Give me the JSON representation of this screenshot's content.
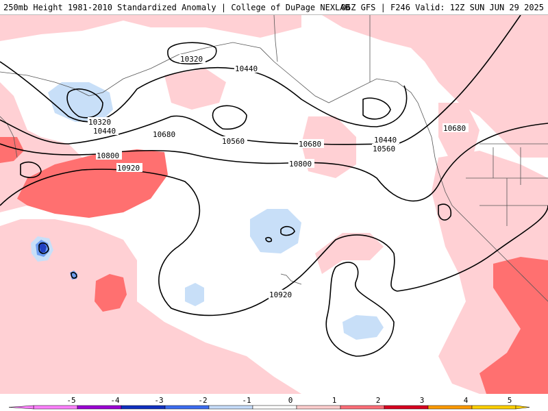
{
  "header": {
    "left_title": "250mb Height 1981-2010 Standardized Anomaly | College of DuPage NEXLAB",
    "right_title": "06Z GFS | F246 Valid: 12Z SUN JUN 29 2025"
  },
  "contour_labels": [
    "10320",
    "10440",
    "10320",
    "10440",
    "10560",
    "10680",
    "10800",
    "10920",
    "10680",
    "10440",
    "10560",
    "10800",
    "10680",
    "10920"
  ],
  "colorbar": {
    "tick_labels": [
      "-5",
      "-4",
      "-3",
      "-2",
      "-1",
      "0",
      "1",
      "2",
      "3",
      "4",
      "5"
    ],
    "colors": [
      "#ff80ff",
      "#9a00d4",
      "#1030c0",
      "#3c6cf0",
      "#c6dcfa",
      "#ffffff",
      "#ffcece",
      "#ff6e78",
      "#d80020",
      "#ff9a00",
      "#ffd000"
    ]
  },
  "map_colors": {
    "ocean_base": "#ffffff",
    "light_pink": "#ffd0d4",
    "medium_red": "#ff7070",
    "light_blue": "#c8dff8",
    "medium_blue": "#6c9cf0",
    "dark_blue": "#2040c0",
    "contour": "#000000",
    "coast": "#444444"
  }
}
